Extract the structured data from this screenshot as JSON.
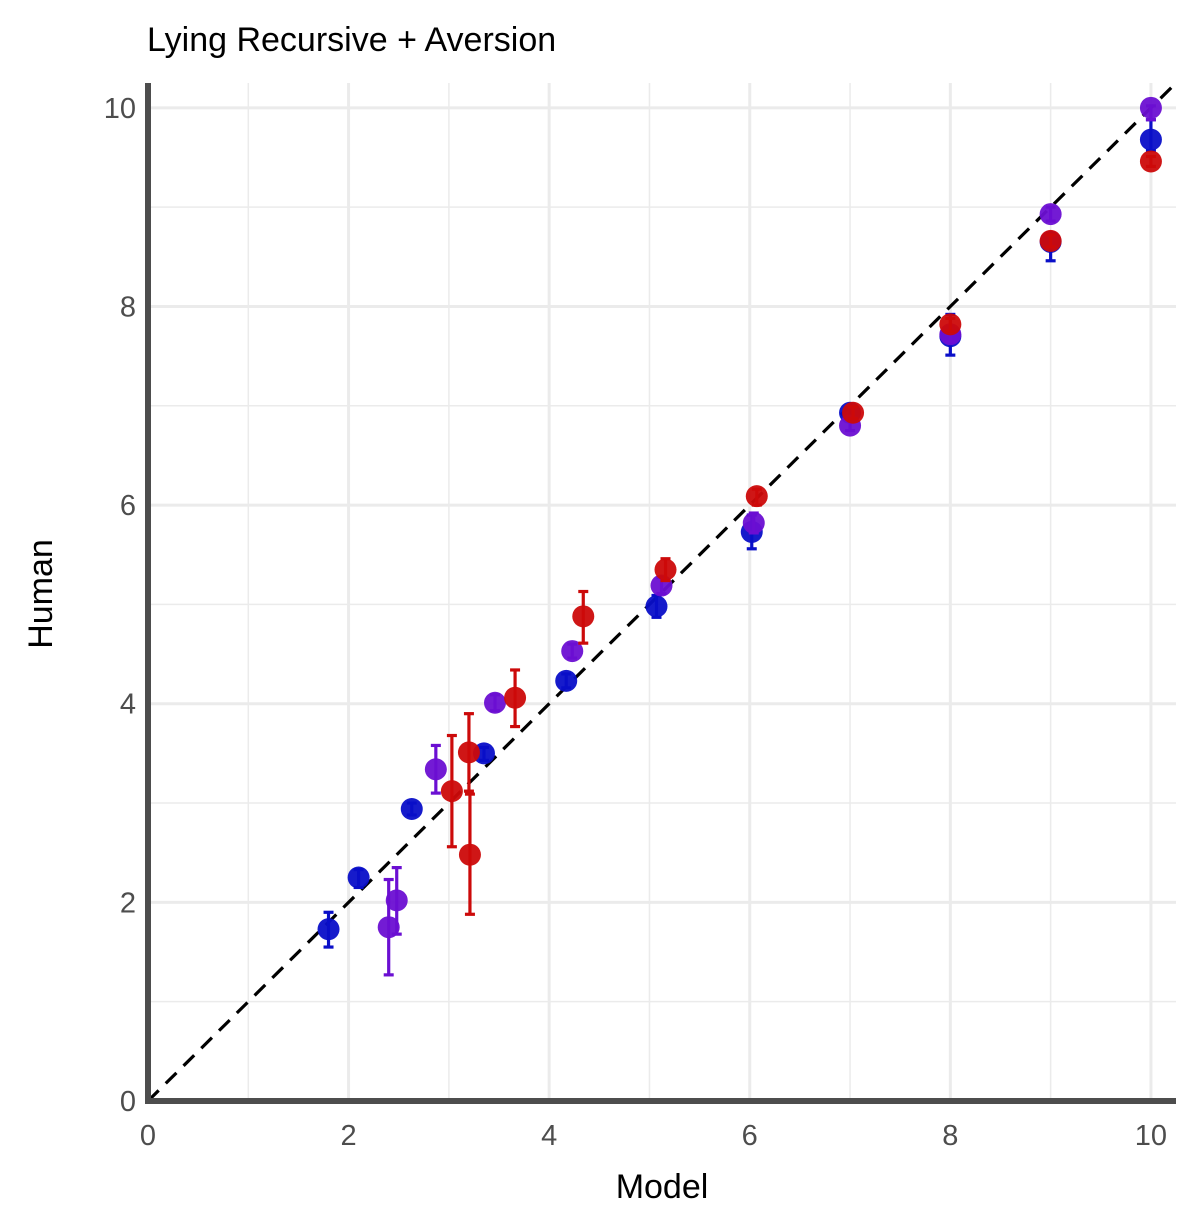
{
  "chart_data": {
    "type": "scatter",
    "title": "Lying Recursive + Aversion",
    "xlabel": "Model",
    "ylabel": "Human",
    "xlim": [
      0,
      10.25
    ],
    "ylim": [
      0,
      10.25
    ],
    "x_ticks": [
      0,
      2,
      4,
      6,
      8,
      10
    ],
    "y_ticks": [
      0,
      2,
      4,
      6,
      8,
      10
    ],
    "grid": true,
    "reference_line": "y = x (dashed, black)",
    "series": [
      {
        "color": "#0a0fc8",
        "points": [
          {
            "x": 1.8,
            "y": 1.73,
            "lo": 1.55,
            "hi": 1.9
          },
          {
            "x": 2.1,
            "y": 2.25,
            "lo": 2.15,
            "hi": 2.33
          },
          {
            "x": 2.63,
            "y": 2.94,
            "lo": 2.88,
            "hi": 3.0
          },
          {
            "x": 3.35,
            "y": 3.5,
            "lo": 3.43,
            "hi": 3.56
          },
          {
            "x": 4.17,
            "y": 4.23,
            "lo": 4.16,
            "hi": 4.3
          },
          {
            "x": 5.07,
            "y": 4.98,
            "lo": 4.87,
            "hi": 5.09
          },
          {
            "x": 6.02,
            "y": 5.73,
            "lo": 5.56,
            "hi": 5.9
          },
          {
            "x": 7.0,
            "y": 6.93,
            "lo": 6.88,
            "hi": 6.98
          },
          {
            "x": 8.0,
            "y": 7.7,
            "lo": 7.51,
            "hi": 7.92
          },
          {
            "x": 9.0,
            "y": 8.65,
            "lo": 8.46,
            "hi": 8.74
          },
          {
            "x": 10.0,
            "y": 9.68,
            "lo": 9.57,
            "hi": 9.88
          }
        ]
      },
      {
        "color": "#6b0fd2",
        "points": [
          {
            "x": 2.4,
            "y": 1.75,
            "lo": 1.27,
            "hi": 2.23
          },
          {
            "x": 2.48,
            "y": 2.02,
            "lo": 1.68,
            "hi": 2.35
          },
          {
            "x": 2.87,
            "y": 3.34,
            "lo": 3.1,
            "hi": 3.58
          },
          {
            "x": 3.46,
            "y": 4.01,
            "lo": 3.93,
            "hi": 4.09
          },
          {
            "x": 4.23,
            "y": 4.53,
            "lo": 4.46,
            "hi": 4.6
          },
          {
            "x": 5.12,
            "y": 5.19,
            "lo": 5.11,
            "hi": 5.27
          },
          {
            "x": 6.04,
            "y": 5.82,
            "lo": 5.72,
            "hi": 5.92
          },
          {
            "x": 7.0,
            "y": 6.8,
            "lo": 6.75,
            "hi": 6.85
          },
          {
            "x": 8.0,
            "y": 7.72,
            "lo": 7.65,
            "hi": 7.8
          },
          {
            "x": 9.0,
            "y": 8.93,
            "lo": 8.86,
            "hi": 9.0
          },
          {
            "x": 10.0,
            "y": 10.0,
            "lo": 9.88,
            "hi": 10.02
          }
        ]
      },
      {
        "color": "#cc0a0a",
        "points": [
          {
            "x": 3.03,
            "y": 3.12,
            "lo": 2.56,
            "hi": 3.68
          },
          {
            "x": 3.2,
            "y": 3.51,
            "lo": 3.12,
            "hi": 3.9
          },
          {
            "x": 3.21,
            "y": 2.48,
            "lo": 1.88,
            "hi": 3.09
          },
          {
            "x": 3.66,
            "y": 4.06,
            "lo": 3.77,
            "hi": 4.34
          },
          {
            "x": 4.34,
            "y": 4.88,
            "lo": 4.61,
            "hi": 5.13
          },
          {
            "x": 5.16,
            "y": 5.35,
            "lo": 5.24,
            "hi": 5.46
          },
          {
            "x": 6.07,
            "y": 6.09,
            "lo": 6.0,
            "hi": 6.16
          },
          {
            "x": 7.03,
            "y": 6.93,
            "lo": 6.87,
            "hi": 6.99
          },
          {
            "x": 8.0,
            "y": 7.82,
            "lo": 7.75,
            "hi": 7.88
          },
          {
            "x": 9.0,
            "y": 8.66,
            "lo": 8.6,
            "hi": 8.72
          },
          {
            "x": 10.0,
            "y": 9.46,
            "lo": 9.41,
            "hi": 9.51
          }
        ]
      }
    ]
  }
}
